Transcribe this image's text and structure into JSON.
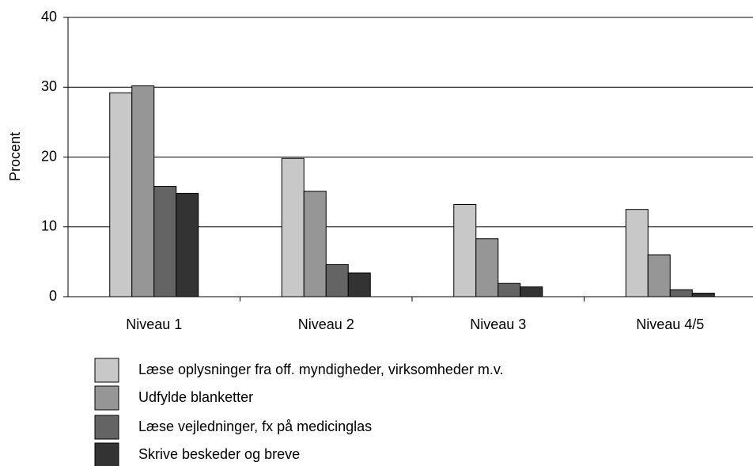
{
  "chart_data": {
    "type": "bar",
    "y_label": "Procent",
    "categories": [
      "Niveau 1",
      "Niveau 2",
      "Niveau 3",
      "Niveau 4/5"
    ],
    "series": [
      {
        "name": "Læse oplysninger fra off. myndigheder, virksomheder m.v.",
        "color": "#c8c8c8",
        "values": [
          29.2,
          19.8,
          13.2,
          12.5
        ]
      },
      {
        "name": "Udfylde blanketter",
        "color": "#969696",
        "values": [
          30.2,
          15.1,
          8.3,
          6.0
        ]
      },
      {
        "name": "Læse vejledninger, fx på medicinglas",
        "color": "#646464",
        "values": [
          15.8,
          4.6,
          1.9,
          1.0
        ]
      },
      {
        "name": "Skrive beskeder og breve",
        "color": "#333333",
        "values": [
          14.8,
          3.4,
          1.4,
          0.5
        ]
      }
    ],
    "ylim": [
      0,
      40
    ],
    "yticks": [
      0,
      10,
      20,
      30,
      40
    ],
    "grid": true
  }
}
